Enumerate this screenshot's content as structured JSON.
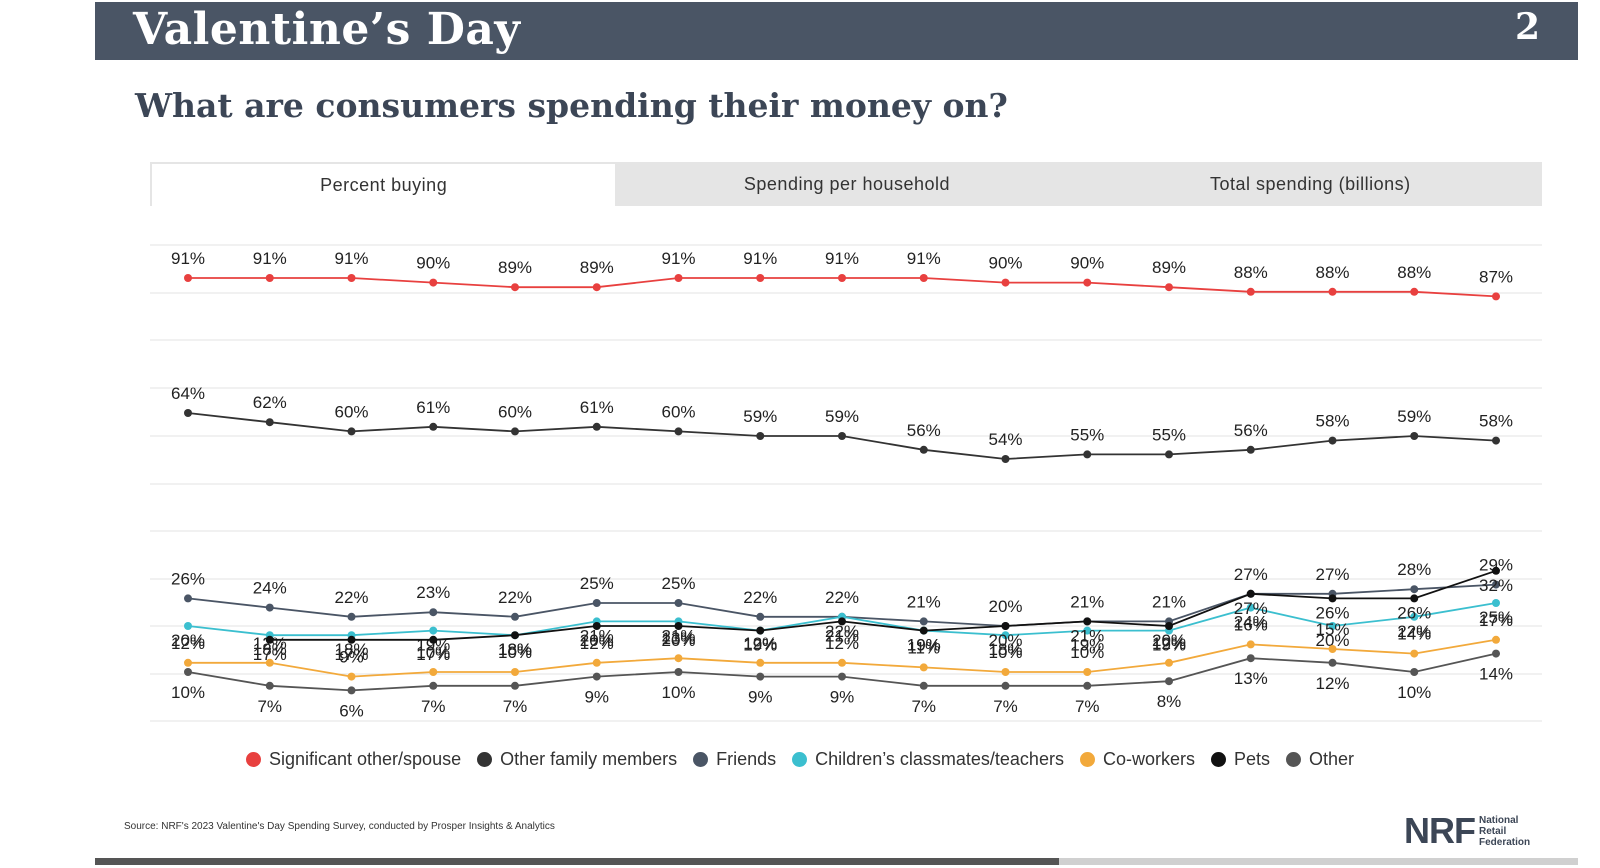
{
  "header": {
    "title": "Valentine’s Day",
    "page_number": "2"
  },
  "subtitle": "What are consumers spending their money on?",
  "tabs": [
    {
      "label": "Percent buying",
      "active": true
    },
    {
      "label": "Spending per household",
      "active": false
    },
    {
      "label": "Total spending (billions)",
      "active": false
    }
  ],
  "source": "Source: NRF's 2023 Valentine's Day Spending Survey, conducted by Prosper Insights & Analytics",
  "logo": {
    "mark": "NRF",
    "lines": [
      "National",
      "Retail",
      "Federation"
    ]
  },
  "progress": {
    "fraction": 0.65
  },
  "chart_data": {
    "type": "line",
    "title": "",
    "xlabel": "",
    "ylabel": "",
    "grid": true,
    "legend_position": "bottom",
    "x": [
      "1",
      "2",
      "3",
      "4",
      "5",
      "6",
      "7",
      "8",
      "9",
      "10",
      "11",
      "12",
      "13",
      "14",
      "15",
      "16",
      "17"
    ],
    "series": [
      {
        "name": "Significant other/spouse",
        "color": "#e8403f",
        "values": [
          91,
          91,
          91,
          90,
          89,
          89,
          91,
          91,
          91,
          91,
          90,
          90,
          89,
          88,
          88,
          88,
          87
        ]
      },
      {
        "name": "Other family members",
        "color": "#333333",
        "values": [
          64,
          62,
          60,
          61,
          60,
          61,
          60,
          59,
          59,
          56,
          54,
          55,
          55,
          56,
          58,
          59,
          58
        ]
      },
      {
        "name": "Friends",
        "color": "#4a5565",
        "values": [
          26,
          24,
          22,
          23,
          22,
          25,
          25,
          22,
          22,
          21,
          20,
          21,
          21,
          27,
          27,
          28,
          29
        ]
      },
      {
        "name": "Children’s classmates/teachers",
        "color": "#3bbfcf",
        "values": [
          20,
          18,
          18,
          19,
          18,
          21,
          21,
          19,
          22,
          19,
          18,
          19,
          19,
          24,
          20,
          22,
          25
        ]
      },
      {
        "name": "Co-workers",
        "color": "#f2a93b",
        "values": [
          12,
          12,
          9,
          10,
          10,
          12,
          13,
          12,
          12,
          11,
          10,
          10,
          12,
          16,
          15,
          14,
          17
        ]
      },
      {
        "name": "Pets",
        "color": "#111111",
        "values": [
          null,
          17,
          17,
          17,
          18,
          20,
          20,
          19,
          21,
          19,
          20,
          21,
          20,
          27,
          26,
          26,
          32
        ]
      },
      {
        "name": "Other",
        "color": "#555555",
        "values": [
          10,
          7,
          6,
          7,
          7,
          9,
          10,
          9,
          9,
          7,
          7,
          7,
          8,
          13,
          12,
          10,
          14
        ]
      }
    ]
  }
}
